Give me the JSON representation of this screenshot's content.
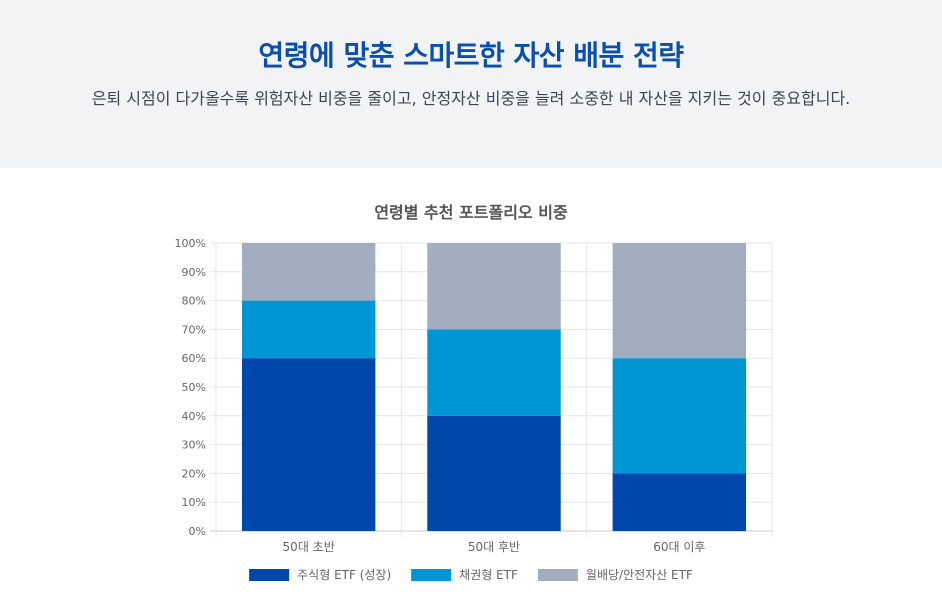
{
  "header": {
    "title": "연령에 맞춘 스마트한 자산 배분 전략",
    "subtitle": "은퇴 시점이 다가올수록 위험자산 비중을 줄이고, 안정자산 비중을 늘려 소중한 내 자산을 지키는 것이 중요합니다."
  },
  "chart_data": {
    "type": "bar",
    "stacked": true,
    "title": "연령별 추천 포트폴리오 비중",
    "categories": [
      "50대 초반",
      "50대 후반",
      "60대 이후"
    ],
    "series": [
      {
        "name": "주식형 ETF (성장)",
        "values": [
          60,
          40,
          20
        ],
        "color": "#0047AB"
      },
      {
        "name": "채권형 ETF",
        "values": [
          20,
          30,
          40
        ],
        "color": "#0096D6"
      },
      {
        "name": "월배당/안전자산 ETF",
        "values": [
          20,
          30,
          40
        ],
        "color": "#A2AEBF"
      }
    ],
    "ylim": [
      0,
      100
    ],
    "yticks": [
      "0%",
      "10%",
      "20%",
      "30%",
      "40%",
      "50%",
      "60%",
      "70%",
      "80%",
      "90%",
      "100%"
    ],
    "grid": true,
    "legend": "bottom"
  }
}
